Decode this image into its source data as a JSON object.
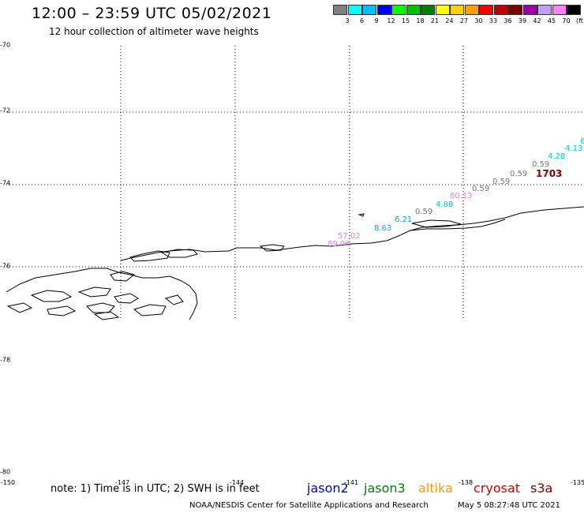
{
  "title": "12:00 – 23:59 UTC 05/02/2021",
  "subtitle": "12 hour collection of altimeter wave heights",
  "legend": {
    "colors": [
      "#808080",
      "#00ffff",
      "#00c0ff",
      "#0000ff",
      "#00ff00",
      "#00c000",
      "#008000",
      "#ffff00",
      "#ffd000",
      "#ffa000",
      "#ff0000",
      "#c00000",
      "#800000",
      "#a000a0",
      "#c0a0ff",
      "#ff80ff",
      "#000000"
    ],
    "labels": [
      "3",
      "6",
      "9",
      "12",
      "15",
      "18",
      "21",
      "24",
      "27",
      "30",
      "33",
      "36",
      "39",
      "42",
      "45",
      "70",
      "(ft)"
    ]
  },
  "lat_labels": [
    "-70",
    "-72",
    "-74",
    "-76",
    "-78",
    "-80"
  ],
  "lon_labels": [
    "-150",
    "-147",
    "-144",
    "-141",
    "-138",
    "-135"
  ],
  "note": "note: 1) Time is in UTC; 2) SWH is in feet",
  "satellites": [
    {
      "name": "jason2",
      "color": "#0000cc"
    },
    {
      "name": "jason3",
      "color": "#008000"
    },
    {
      "name": "altika",
      "color": "#ff9900"
    },
    {
      "name": "cryosat",
      "color": "#cc0000"
    },
    {
      "name": "s3a",
      "color": "#800000"
    }
  ],
  "footer": "NOAA/NESDIS Center for Satellite Applications and Research",
  "footer_time": "May  5 08:27:48 UTC 2021",
  "observations": [
    {
      "value": "89.06",
      "color": "#e080e0"
    },
    {
      "value": "57.02",
      "color": "#e080e0"
    },
    {
      "value": "8.63",
      "color": "#00aadd"
    },
    {
      "value": "6.21",
      "color": "#00aadd"
    },
    {
      "value": "0.59",
      "color": "#777777"
    },
    {
      "value": "4.88",
      "color": "#00c8d8"
    },
    {
      "value": "60.13",
      "color": "#e080e0"
    },
    {
      "value": "0.59",
      "color": "#777777"
    },
    {
      "value": "0.59",
      "color": "#777777"
    },
    {
      "value": "0.59",
      "color": "#777777"
    },
    {
      "value": "0.59",
      "color": "#777777"
    },
    {
      "value": "1703",
      "color": "#800000"
    },
    {
      "value": "4.28",
      "color": "#00c8d8"
    },
    {
      "value": "4.13",
      "color": "#00c8d8"
    },
    {
      "value": "6",
      "color": "#00c8d8"
    }
  ]
}
